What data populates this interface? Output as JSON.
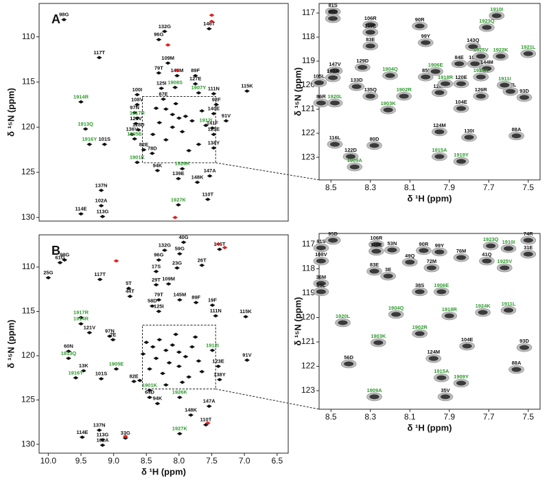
{
  "chart_data": [
    {
      "type": "scatter",
      "panel_label": "A",
      "y_label": "δ ¹⁵N (ppm)",
      "xlim": [
        10.14,
        6.33
      ],
      "ylim": [
        106.3,
        130.4
      ],
      "yticks": [
        110,
        115,
        120,
        125,
        130
      ],
      "series": [
        {
          "color": "#111111",
          "label_color": "#111111",
          "x": [
            9.76,
            8.22,
            7.54,
            8.31,
            9.22,
            8.17,
            8.31,
            8.03,
            7.75,
            7.75,
            8.27,
            7.47,
            6.96,
            8.64,
            8.24,
            8.64,
            7.43,
            7.47,
            8.68,
            7.28,
            8.66,
            7.49,
            8.62,
            8.72,
            7.47,
            9.14,
            7.47,
            8.54,
            8.41,
            8.33,
            8.01,
            7.72,
            7.53,
            9.19,
            7.56,
            9.19,
            9.5,
            9.17
          ],
          "values": [
            108.1,
            109.4,
            109.1,
            110.3,
            112.3,
            112.9,
            114.0,
            114.3,
            114.3,
            115.2,
            115.7,
            116.3,
            116.0,
            116.4,
            116.9,
            117.5,
            117.5,
            118.5,
            118.4,
            119.3,
            119.6,
            120.1,
            120.3,
            120.8,
            120.8,
            121.9,
            122.3,
            122.5,
            122.9,
            124.8,
            125.7,
            126.1,
            125.4,
            127.0,
            128.0,
            128.7,
            129.6,
            129.9
          ],
          "labels": [
            "98G",
            "132G",
            "146T",
            "96G",
            "117T",
            "109M",
            "79T",
            "145M",
            "89F",
            "127E",
            "125I",
            "111N",
            "115K",
            "100I",
            "87E",
            "108V",
            "92F",
            "140E",
            "97N",
            "91V",
            "121V",
            "141F",
            "118D",
            "136V",
            "123E",
            "101S",
            "138Y",
            "82E",
            "78D",
            "94K",
            "139E",
            "148K",
            "147A",
            "137N",
            "110T",
            "102A",
            "114E",
            "113G"
          ]
        },
        {
          "color": "#111111",
          "label_color": "#2e9a2e",
          "x": [
            8.06,
            7.7,
            9.5,
            8.64,
            7.59,
            9.43,
            8.68,
            9.37,
            8.64,
            7.95,
            8.01
          ],
          "values": [
            115.6,
            116.2,
            117.2,
            119.0,
            119.8,
            120.2,
            121.3,
            121.9,
            123.9,
            124.6,
            128.6
          ],
          "labels": [
            "1908S",
            "1907Y",
            "1914R",
            "1917R",
            "1912I",
            "1913Q",
            "1905E",
            "1916Y",
            "1901K",
            "1926K",
            "1927K"
          ]
        },
        {
          "color": "#111111",
          "x": [
            8.2,
            8.1,
            8.0,
            7.9,
            8.3,
            8.1,
            7.95,
            7.8,
            8.4,
            8.2,
            7.7,
            7.85,
            8.05,
            7.65,
            8.35
          ],
          "values": [
            118.0,
            118.6,
            119.0,
            118.8,
            119.5,
            120.0,
            120.5,
            119.3,
            120.8,
            121.4,
            121.9,
            122.6,
            117.4,
            118.2,
            117.9
          ]
        },
        {
          "color": "#e02020",
          "x": [
            7.5,
            7.5,
            8.17,
            8.03,
            8.06
          ],
          "values": [
            107.6,
            108.3,
            110.9,
            113.7,
            130.0
          ]
        }
      ]
    },
    {
      "type": "scatter",
      "x_label": "δ ¹H (ppm)",
      "y_label": "δ ¹⁵N (ppm)",
      "xlim": [
        8.56,
        7.44
      ],
      "ylim": [
        116.6,
        123.94
      ],
      "xticks": [
        8.5,
        8.3,
        8.1,
        7.9,
        7.7,
        7.5
      ],
      "yticks": [
        117,
        118,
        119,
        120,
        121,
        122,
        123
      ],
      "series": [
        {
          "color": "#3a3a3a",
          "label_color": "#111111",
          "x": [
            8.49,
            8.49,
            8.3,
            8.3,
            8.3,
            8.05,
            8.02,
            7.78,
            8.48,
            8.49,
            8.34,
            8.37,
            8.56,
            8.55,
            8.3,
            8.02,
            7.85,
            7.77,
            7.71,
            7.95,
            7.84,
            7.59,
            7.74,
            7.52,
            7.84,
            8.48,
            8.28,
            8.4,
            7.95,
            7.8,
            7.56
          ],
          "values": [
            116.94,
            117.23,
            117.49,
            117.8,
            118.37,
            117.54,
            118.23,
            118.4,
            119.4,
            119.69,
            119.26,
            120.06,
            119.9,
            120.74,
            120.46,
            119.66,
            119.11,
            119.11,
            119.31,
            120.31,
            119.94,
            120.26,
            120.46,
            120.51,
            120.97,
            122.46,
            122.51,
            122.97,
            121.94,
            122.17,
            122.11
          ],
          "labels": [
            "81S",
            "95D",
            "106R",
            "119E",
            "83E",
            "90R",
            "99Y",
            "143Q",
            "147V",
            "103A",
            "129D",
            "133D",
            "105L",
            "86R",
            "135Q",
            "85I",
            "84E",
            "107H",
            "144M",
            "128A",
            "120E",
            "112L",
            "126R",
            "93D",
            "104E",
            "116L",
            "80D",
            "122D",
            "124M",
            "130I",
            "88A"
          ]
        },
        {
          "color": "#3a3a3a",
          "label_color": "#2e9a2e",
          "x": [
            7.66,
            7.71,
            7.74,
            7.64,
            7.5,
            8.2,
            8.48,
            8.13,
            8.21,
            7.97,
            7.74,
            7.92,
            7.62,
            7.95,
            7.84,
            8.38
          ],
          "values": [
            117.11,
            117.6,
            118.8,
            118.8,
            118.69,
            119.6,
            120.74,
            120.46,
            121.03,
            119.43,
            119.66,
            119.94,
            120.0,
            122.97,
            123.17,
            123.4
          ],
          "labels": [
            "1910I",
            "1923Q",
            "1925V",
            "1922K",
            "1921L",
            "1904Q",
            "1920L",
            "1902R",
            "1903K",
            "1906E",
            "1924K",
            "1918R",
            "1911I",
            "1915A",
            "1919Y",
            "1909A"
          ]
        }
      ]
    },
    {
      "type": "scatter",
      "panel_label": "B",
      "x_label": "δ ¹H (ppm)",
      "y_label": "δ ¹⁵N (ppm)",
      "xlim": [
        10.14,
        6.33
      ],
      "ylim": [
        106.36,
        131.0
      ],
      "xticks": [
        {
          "value": 10,
          "label": "10.0"
        },
        9.5,
        {
          "value": 9,
          "label": "9.0"
        },
        8.5,
        {
          "value": 8,
          "label": "8.0"
        },
        7.5,
        {
          "value": 7,
          "label": "7.0"
        },
        6.5
      ],
      "yticks": [
        110,
        115,
        120,
        125,
        130
      ],
      "series": [
        {
          "color": "#111111",
          "label_color": "#111111",
          "x": [
            7.93,
            7.38,
            8.22,
            9.82,
            9.75,
            10.0,
            7.99,
            8.31,
            8.03,
            7.65,
            9.21,
            8.35,
            8.35,
            8.16,
            8.77,
            8.75,
            8.31,
            7.99,
            7.74,
            7.49,
            6.98,
            8.41,
            8.31,
            7.44,
            9.06,
            9.37,
            9.01,
            9.69,
            6.96,
            7.4,
            7.38,
            9.46,
            9.19,
            8.69,
            8.45,
            8.33,
            7.54,
            7.82,
            9.22,
            7.59,
            9.17,
            9.48,
            9.17,
            8.82
          ],
          "values": [
            107.2,
            108.0,
            108.1,
            109.5,
            109.2,
            111.2,
            108.5,
            109.2,
            110.1,
            109.8,
            111.4,
            110.5,
            112.0,
            111.9,
            112.4,
            113.3,
            113.7,
            113.7,
            114.0,
            114.3,
            115.6,
            114.4,
            115.0,
            115.5,
            117.8,
            117.4,
            118.2,
            119.5,
            120.5,
            121.2,
            122.7,
            121.7,
            122.6,
            122.9,
            124.7,
            125.4,
            125.7,
            126.7,
            128.4,
            127.8,
            130.1,
            129.2,
            129.5,
            129.3
          ],
          "labels": [
            "40G",
            "146T",
            "132G",
            "61G",
            "98G",
            "25G",
            "59G",
            "96G",
            "23G",
            "26T",
            "117T",
            "17S",
            "29T",
            "109M",
            "5T",
            "44T",
            "79T",
            "145M",
            "89F",
            "19F",
            "115K",
            "58D",
            "125I",
            "111N",
            "97N",
            "121V",
            "7E",
            "60N",
            "91V",
            "123E",
            "138Y",
            "13K",
            "101S",
            "82E",
            "64D",
            "94K",
            "147A",
            "148K",
            "137N",
            "110T",
            "102A",
            "114E",
            "113G",
            "33G"
          ]
        },
        {
          "color": "#111111",
          "label_color": "#2e9a2e",
          "x": [
            9.5,
            9.5,
            9.69,
            7.49,
            9.58,
            8.96,
            8.45,
            7.99,
            7.99
          ],
          "values": [
            115.7,
            116.4,
            120.3,
            119.4,
            122.5,
            121.5,
            123.9,
            124.7,
            128.8
          ],
          "labels": [
            "1917R",
            "1914R",
            "1913Q",
            "1912I",
            "1916Y",
            "1905E",
            "1901K",
            "1926K",
            "1927K"
          ]
        },
        {
          "color": "#111111",
          "x": [
            8.5,
            8.4,
            8.3,
            8.2,
            8.1,
            8.0,
            7.9,
            7.8,
            8.35,
            8.15,
            8.0,
            7.7,
            8.45,
            8.25,
            7.85,
            7.65,
            8.55,
            8.05,
            7.75,
            8.6,
            8.2,
            7.95
          ],
          "values": [
            118.5,
            119.0,
            118.2,
            119.4,
            118.8,
            119.6,
            120.1,
            119.0,
            120.3,
            120.8,
            121.2,
            120.6,
            121.5,
            122.0,
            122.4,
            121.8,
            119.8,
            117.6,
            117.9,
            122.8,
            123.3,
            123.0
          ]
        },
        {
          "color": "#e02020",
          "x": [
            7.4,
            7.3,
            8.96,
            7.56,
            8.82
          ],
          "values": [
            107.4,
            107.8,
            109.3,
            127.6,
            129.1
          ]
        }
      ]
    },
    {
      "type": "scatter",
      "x_label": "δ ¹H (ppm)",
      "y_label": "δ ¹⁵N (ppm)",
      "xlim": [
        8.56,
        7.44
      ],
      "ylim": [
        116.55,
        123.76
      ],
      "xticks": [
        8.5,
        8.3,
        8.1,
        7.9,
        7.7,
        7.5
      ],
      "yticks": [
        117,
        118,
        119,
        120,
        121,
        122,
        123
      ],
      "series": [
        {
          "color": "#3a3a3a",
          "label_color": "#111111",
          "x": [
            8.49,
            8.55,
            8.27,
            8.19,
            8.27,
            8.55,
            8.03,
            7.95,
            7.84,
            8.1,
            7.99,
            7.71,
            7.5,
            7.5,
            8.28,
            8.21,
            8.55,
            8.55,
            8.05,
            7.81,
            7.98,
            8.41,
            7.92,
            7.56,
            7.52
          ],
          "values": [
            116.83,
            117.14,
            117.0,
            117.23,
            117.28,
            117.68,
            117.25,
            117.31,
            117.54,
            117.73,
            117.96,
            117.68,
            116.83,
            117.4,
            118.1,
            118.3,
            118.6,
            118.94,
            118.94,
            121.17,
            121.68,
            121.9,
            123.25,
            122.13,
            121.23
          ],
          "labels": [
            "95D",
            "81S",
            "106R",
            "53N",
            "119E",
            "108V",
            "90R",
            "99Y",
            "76M",
            "49Q",
            "72M",
            "41Q",
            "74R",
            "31E",
            "83E",
            "3E",
            "36M",
            "69L",
            "38S",
            "104E",
            "124M",
            "56D",
            "35V",
            "88A",
            "93D"
          ]
        },
        {
          "color": "#3a3a3a",
          "label_color": "#2e9a2e",
          "x": [
            7.69,
            7.6,
            7.62,
            7.94,
            8.17,
            8.44,
            7.9,
            7.73,
            7.6,
            8.05,
            8.26,
            7.94,
            7.84,
            8.28
          ],
          "values": [
            117.06,
            117.17,
            117.96,
            118.94,
            119.87,
            120.21,
            119.93,
            119.79,
            119.7,
            120.66,
            121.03,
            122.47,
            122.69,
            123.25
          ],
          "labels": [
            "1923Q",
            "1910I",
            "1925V",
            "1906E",
            "1904Q",
            "1920L",
            "1918R",
            "1924K",
            "1911L",
            "1902R",
            "1903K",
            "1915A",
            "1909Y",
            "1909A"
          ]
        }
      ]
    }
  ]
}
